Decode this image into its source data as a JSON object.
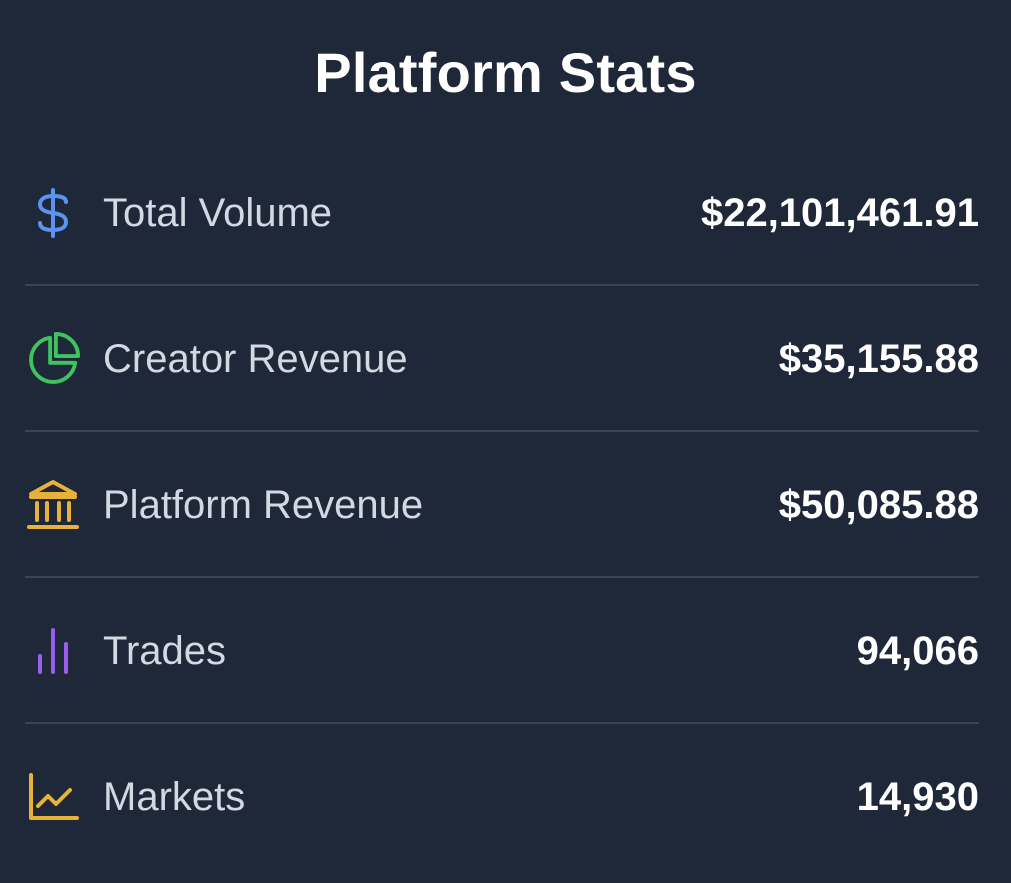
{
  "title": "Platform Stats",
  "stats": [
    {
      "label": "Total Volume",
      "value": "$22,101,461.91",
      "icon": "dollar-icon",
      "icon_color": "#5b93f0"
    },
    {
      "label": "Creator Revenue",
      "value": "$35,155.88",
      "icon": "pie-chart-icon",
      "icon_color": "#3fc25f"
    },
    {
      "label": "Platform Revenue",
      "value": "$50,085.88",
      "icon": "bank-icon",
      "icon_color": "#e8b23a"
    },
    {
      "label": "Trades",
      "value": "94,066",
      "icon": "bar-chart-icon",
      "icon_color": "#9b5cf0"
    },
    {
      "label": "Markets",
      "value": "14,930",
      "icon": "line-chart-icon",
      "icon_color": "#e8b23a"
    }
  ],
  "colors": {
    "background": "#1f2838",
    "divider": "#3a4354",
    "label": "#d3d8e2",
    "value": "#ffffff"
  }
}
